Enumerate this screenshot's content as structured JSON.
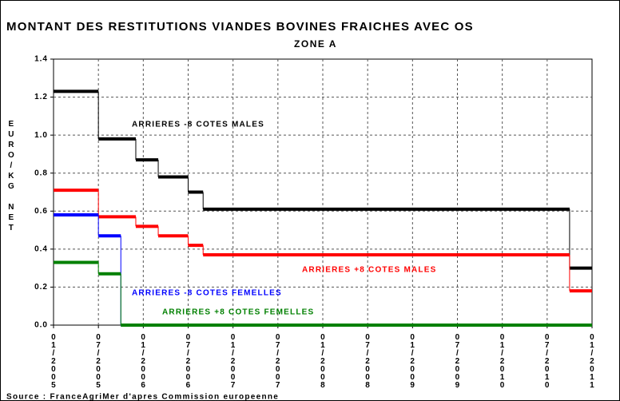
{
  "chart_data": {
    "type": "step",
    "title": "MONTANT DES RESTITUTIONS VIANDES BOVINES FRAICHES AVEC OS",
    "subtitle": "ZONE A",
    "y_label": "EURO/KG NET",
    "source": "Source : FranceAgriMer d'apres Commission europeenne",
    "xlim": [
      "2005-01",
      "2011-01"
    ],
    "xticks": [
      {
        "value": "2005-01",
        "label": "01/2005"
      },
      {
        "value": "2005-07",
        "label": "07/2005"
      },
      {
        "value": "2006-01",
        "label": "01/2006"
      },
      {
        "value": "2006-07",
        "label": "07/2006"
      },
      {
        "value": "2007-01",
        "label": "01/2007"
      },
      {
        "value": "2007-07",
        "label": "07/2007"
      },
      {
        "value": "2008-01",
        "label": "01/2008"
      },
      {
        "value": "2008-07",
        "label": "07/2008"
      },
      {
        "value": "2009-01",
        "label": "01/2009"
      },
      {
        "value": "2009-07",
        "label": "07/2009"
      },
      {
        "value": "2010-01",
        "label": "01/2010"
      },
      {
        "value": "2010-07",
        "label": "07/2010"
      },
      {
        "value": "2011-01",
        "label": "01/2011"
      }
    ],
    "ylim": [
      0,
      1.4
    ],
    "yticks": [
      {
        "value": 0,
        "label": "0.0"
      },
      0.2,
      0.4,
      0.6,
      0.8,
      {
        "value": 1,
        "label": "1.0"
      },
      1.2,
      1.4
    ],
    "grid": true,
    "series": [
      {
        "name": "ARRIERES -8 COTES MALES",
        "color": "#000000",
        "bins": [
          "2005-01",
          "2005-07",
          "2005-12",
          "2006-03",
          "2006-07",
          "2006-09",
          "2010-10",
          "2011-01"
        ],
        "values": [
          1.23,
          0.98,
          0.87,
          0.78,
          0.7,
          0.61,
          0.3
        ]
      },
      {
        "name": "ARRIERES +8 COTES MALES",
        "color": "#ff0000",
        "bins": [
          "2005-01",
          "2005-07",
          "2005-12",
          "2006-03",
          "2006-07",
          "2006-09",
          "2010-10",
          "2011-01"
        ],
        "values": [
          0.71,
          0.57,
          0.52,
          0.47,
          0.42,
          0.37,
          0.18
        ]
      },
      {
        "name": "ARRIERES -8 COTES FEMELLES",
        "color": "#0000ff",
        "bins": [
          "2005-01",
          "2005-07",
          "2005-10",
          "2011-01"
        ],
        "values": [
          0.58,
          0.47,
          0
        ]
      },
      {
        "name": "ARRIERES +8 COTES FEMELLES",
        "color": "#008000",
        "bins": [
          "2005-01",
          "2005-07",
          "2005-10",
          "2011-01"
        ],
        "values": [
          0.33,
          0.27,
          0
        ]
      }
    ]
  }
}
